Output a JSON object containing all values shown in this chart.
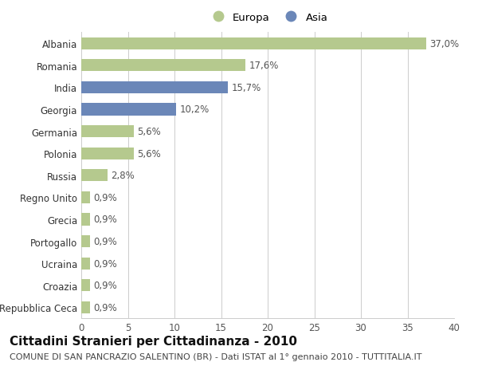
{
  "categories": [
    "Albania",
    "Romania",
    "India",
    "Georgia",
    "Germania",
    "Polonia",
    "Russia",
    "Regno Unito",
    "Grecia",
    "Portogallo",
    "Ucraina",
    "Croazia",
    "Repubblica Ceca"
  ],
  "values": [
    37.0,
    17.6,
    15.7,
    10.2,
    5.6,
    5.6,
    2.8,
    0.9,
    0.9,
    0.9,
    0.9,
    0.9,
    0.9
  ],
  "labels": [
    "37,0%",
    "17,6%",
    "15,7%",
    "10,2%",
    "5,6%",
    "5,6%",
    "2,8%",
    "0,9%",
    "0,9%",
    "0,9%",
    "0,9%",
    "0,9%",
    "0,9%"
  ],
  "colors": [
    "#b5c98e",
    "#b5c98e",
    "#6b87b8",
    "#6b87b8",
    "#b5c98e",
    "#b5c98e",
    "#b5c98e",
    "#b5c98e",
    "#b5c98e",
    "#b5c98e",
    "#b5c98e",
    "#b5c98e",
    "#b5c98e"
  ],
  "europa_color": "#b5c98e",
  "asia_color": "#6b87b8",
  "background_color": "#ffffff",
  "grid_color": "#cccccc",
  "title": "Cittadini Stranieri per Cittadinanza - 2010",
  "subtitle": "COMUNE DI SAN PANCRAZIO SALENTINO (BR) - Dati ISTAT al 1° gennaio 2010 - TUTTITALIA.IT",
  "xlim": [
    0,
    40
  ],
  "xticks": [
    0,
    5,
    10,
    15,
    20,
    25,
    30,
    35,
    40
  ],
  "legend_labels": [
    "Europa",
    "Asia"
  ],
  "title_fontsize": 11,
  "subtitle_fontsize": 8,
  "tick_fontsize": 8.5,
  "label_fontsize": 8.5,
  "bar_height": 0.55
}
